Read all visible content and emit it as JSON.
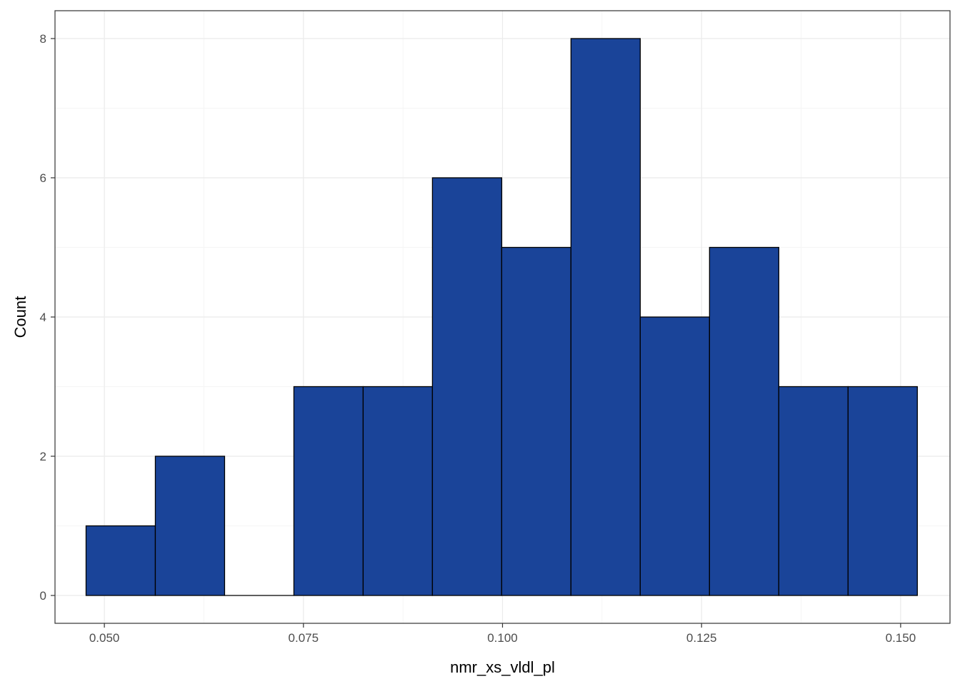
{
  "chart_data": {
    "type": "bar",
    "subtype": "histogram",
    "title": "",
    "xlabel": "nmr_xs_vldl_pl",
    "ylabel": "Count",
    "xlim": [
      0.0438,
      0.1562
    ],
    "ylim": [
      -0.4,
      8.4
    ],
    "grid": true,
    "legend": "none",
    "x_ticks": [
      {
        "value": 0.05,
        "label": "0.050"
      },
      {
        "value": 0.075,
        "label": "0.075"
      },
      {
        "value": 0.1,
        "label": "0.100"
      },
      {
        "value": 0.125,
        "label": "0.125"
      },
      {
        "value": 0.15,
        "label": "0.150"
      }
    ],
    "y_ticks": [
      {
        "value": 0,
        "label": "0"
      },
      {
        "value": 2,
        "label": "2"
      },
      {
        "value": 4,
        "label": "4"
      },
      {
        "value": 6,
        "label": "6"
      },
      {
        "value": 8,
        "label": "8"
      }
    ],
    "bins": [
      {
        "x0": 0.0477,
        "x1": 0.0564,
        "count": 1
      },
      {
        "x0": 0.0564,
        "x1": 0.0651,
        "count": 2
      },
      {
        "x0": 0.0651,
        "x1": 0.0738,
        "count": 0
      },
      {
        "x0": 0.0738,
        "x1": 0.0825,
        "count": 3
      },
      {
        "x0": 0.0825,
        "x1": 0.0912,
        "count": 3
      },
      {
        "x0": 0.0912,
        "x1": 0.0999,
        "count": 6
      },
      {
        "x0": 0.0999,
        "x1": 0.1086,
        "count": 5
      },
      {
        "x0": 0.1086,
        "x1": 0.1173,
        "count": 8
      },
      {
        "x0": 0.1173,
        "x1": 0.126,
        "count": 4
      },
      {
        "x0": 0.126,
        "x1": 0.1347,
        "count": 5
      },
      {
        "x0": 0.1347,
        "x1": 0.1434,
        "count": 3
      },
      {
        "x0": 0.1434,
        "x1": 0.1521,
        "count": 3
      }
    ],
    "colors": {
      "bar_fill": "#1a4499",
      "bar_stroke": "#000000",
      "grid_major": "#ebebeb",
      "grid_minor": "#f5f5f5",
      "panel_border": "#333333",
      "tick_text": "#4d4d4d",
      "axis_title": "#000000"
    }
  }
}
